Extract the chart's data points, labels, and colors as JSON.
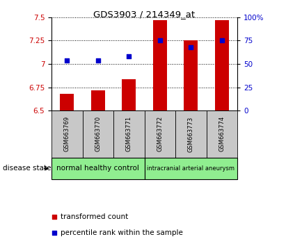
{
  "title": "GDS3903 / 214349_at",
  "samples": [
    "GSM663769",
    "GSM663770",
    "GSM663771",
    "GSM663772",
    "GSM663773",
    "GSM663774"
  ],
  "bar_values": [
    6.68,
    6.72,
    6.84,
    7.47,
    7.25,
    7.47
  ],
  "bar_bottom": 6.5,
  "percentile_values": [
    7.04,
    7.04,
    7.08,
    7.25,
    7.18,
    7.25
  ],
  "ylim": [
    6.5,
    7.5
  ],
  "yticks": [
    6.5,
    6.75,
    7.0,
    7.25,
    7.5
  ],
  "ytick_labels": [
    "6.5",
    "6.75",
    "7",
    "7.25",
    "7.5"
  ],
  "right_yticks": [
    0,
    25,
    50,
    75,
    100
  ],
  "right_ytick_labels": [
    "0",
    "25",
    "50",
    "75",
    "100%"
  ],
  "bar_color": "#cc0000",
  "percentile_color": "#0000cc",
  "tick_label_color_left": "#cc0000",
  "tick_label_color_right": "#0000cc",
  "sample_box_bg": "#c8c8c8",
  "group1_label": "normal healthy control",
  "group2_label": "intracranial arterial aneurysm",
  "group_color": "#90ee90",
  "disease_state_label": "disease state",
  "legend_bar_label": "transformed count",
  "legend_pct_label": "percentile rank within the sample",
  "bar_width": 0.45
}
